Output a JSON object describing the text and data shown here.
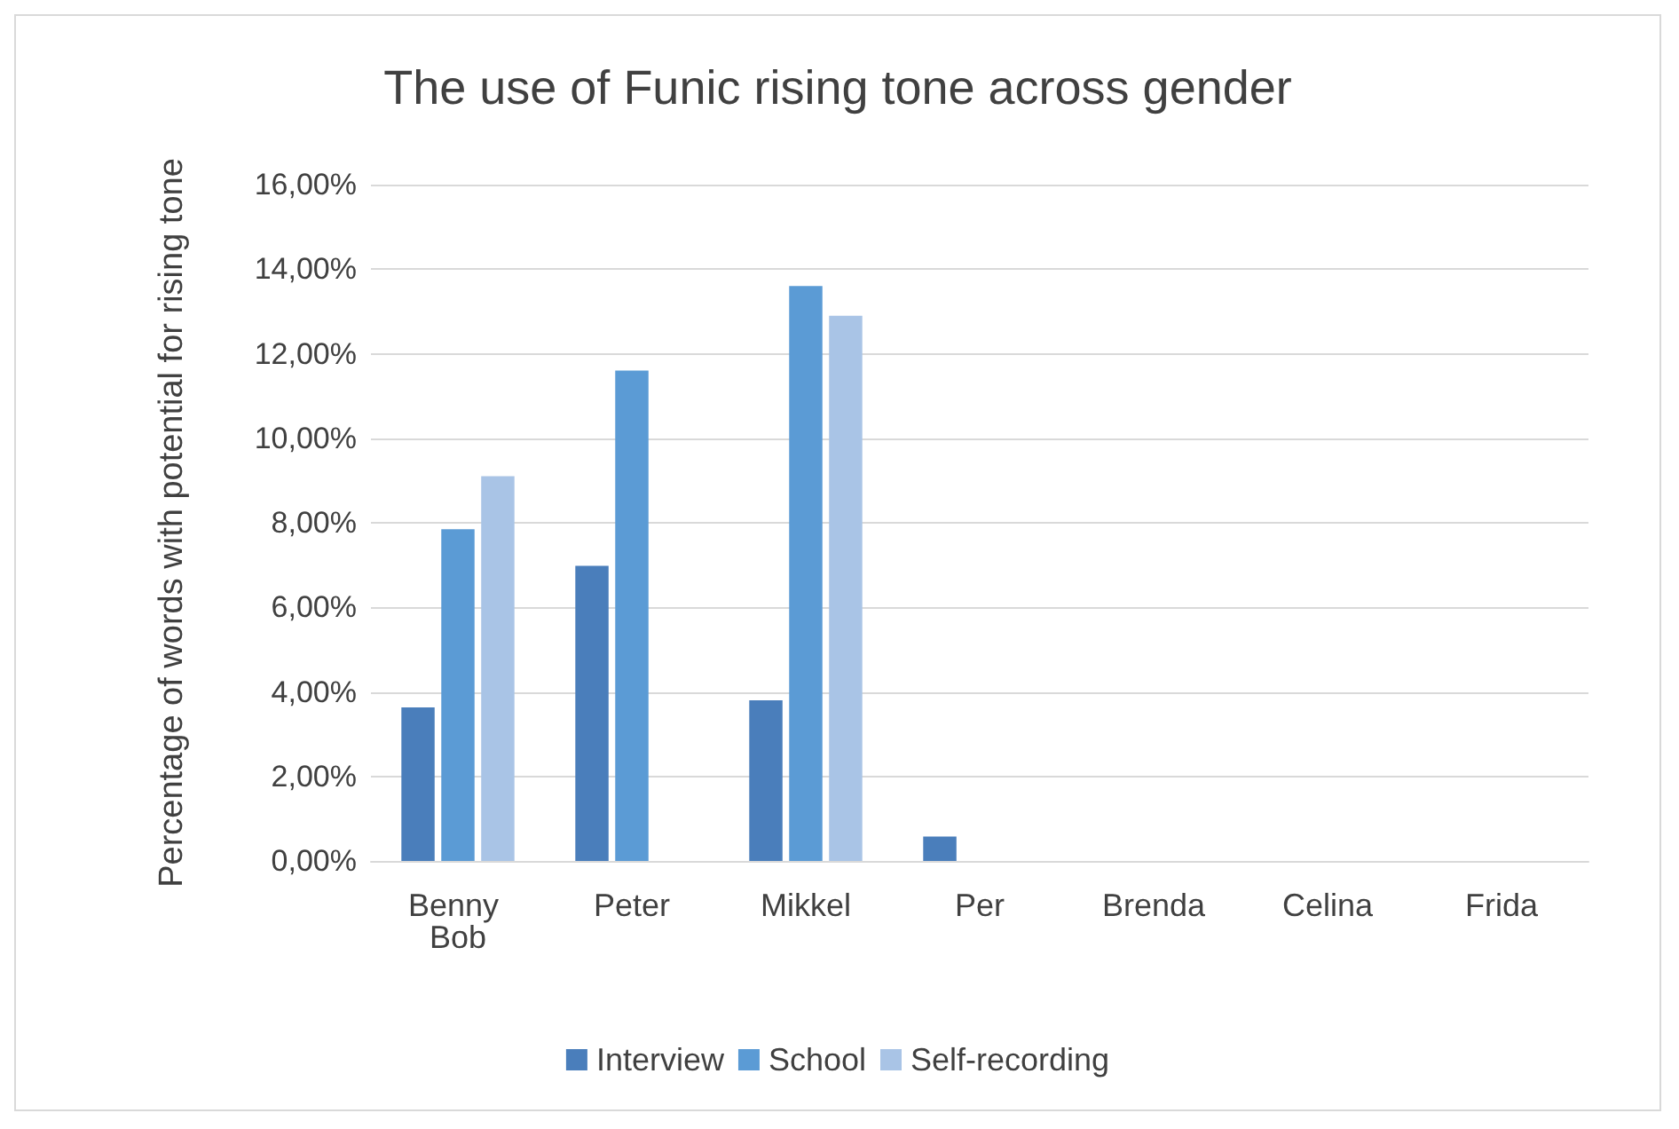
{
  "chart_data": {
    "type": "bar",
    "title": "The use of Funic rising tone across gender",
    "ylabel": "Percentage of words with potential for rising tone",
    "categories": [
      "Benny Bob",
      "Peter",
      "Mikkel",
      "Per",
      "Brenda",
      "Celina",
      "Frida"
    ],
    "series": [
      {
        "name": "Interview",
        "color": "#4a7ebb",
        "values": [
          3.63,
          6.98,
          3.8,
          0.58,
          0,
          0,
          0
        ]
      },
      {
        "name": "School",
        "color": "#5b9bd5",
        "values": [
          7.85,
          11.6,
          13.6,
          0,
          0,
          0,
          0
        ]
      },
      {
        "name": "Self-recording",
        "color": "#a9c4e6",
        "values": [
          9.1,
          0,
          12.9,
          0,
          0,
          0,
          0
        ]
      }
    ],
    "ylim": [
      0,
      16
    ],
    "yticks": [
      {
        "value": 0,
        "label": "0,00%"
      },
      {
        "value": 2,
        "label": "2,00%"
      },
      {
        "value": 4,
        "label": "4,00%"
      },
      {
        "value": 6,
        "label": "6,00%"
      },
      {
        "value": 8,
        "label": "8,00%"
      },
      {
        "value": 10,
        "label": "10,00%"
      },
      {
        "value": 12,
        "label": "12,00%"
      },
      {
        "value": 14,
        "label": "14,00%"
      },
      {
        "value": 16,
        "label": "16,00%"
      }
    ],
    "grid": "y",
    "legend": "bottom"
  }
}
